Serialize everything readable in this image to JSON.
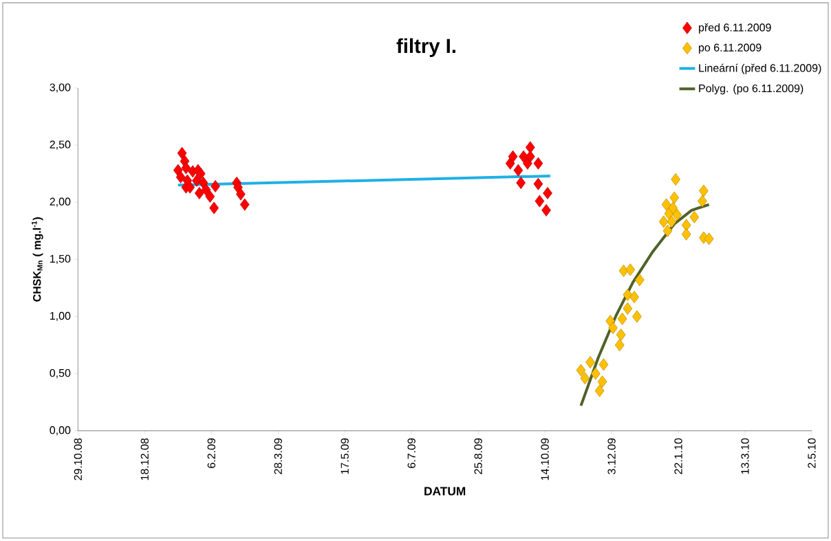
{
  "chart_data": {
    "type": "scatter",
    "title": "filtry I.",
    "xlabel": "DATUM",
    "ylabel": "CHSK$_{Mn}$ ( mg.l$^{-1}$)",
    "xlim": [
      "2008-10-29",
      "2010-05-02"
    ],
    "xticks": [
      {
        "value": "2008-10-29",
        "label": "29.10.08"
      },
      {
        "value": "2008-12-18",
        "label": "18.12.08"
      },
      {
        "value": "2009-02-06",
        "label": "6.2.09"
      },
      {
        "value": "2009-03-28",
        "label": "28.3.09"
      },
      {
        "value": "2009-05-17",
        "label": "17.5.09"
      },
      {
        "value": "2009-07-06",
        "label": "6.7.09"
      },
      {
        "value": "2009-08-25",
        "label": "25.8.09"
      },
      {
        "value": "2009-10-14",
        "label": "14.10.09"
      },
      {
        "value": "2009-12-03",
        "label": "3.12.09"
      },
      {
        "value": "2010-01-22",
        "label": "22.1.10"
      },
      {
        "value": "2010-03-13",
        "label": "13.3.10"
      },
      {
        "value": "2010-05-02",
        "label": "2.5.10"
      }
    ],
    "ylim": [
      0,
      3
    ],
    "yticks": [
      {
        "value": 0,
        "label": "0,00"
      },
      {
        "value": 0.5,
        "label": "0,50"
      },
      {
        "value": 1,
        "label": "1,00"
      },
      {
        "value": 1.5,
        "label": "1,50"
      },
      {
        "value": 2,
        "label": "2,00"
      },
      {
        "value": 2.5,
        "label": "2,50"
      },
      {
        "value": 3,
        "label": "3,00"
      }
    ],
    "grid": false,
    "legend": "top right",
    "series": [
      {
        "name": "před 6.11.2009",
        "marker": "diamond",
        "color": "#ff0000",
        "x": [
          "2009-01-12",
          "2009-01-14",
          "2009-01-15",
          "2009-01-17",
          "2009-01-18",
          "2009-01-18",
          "2009-01-19",
          "2009-01-21",
          "2009-01-23",
          "2009-01-26",
          "2009-01-27",
          "2009-01-28",
          "2009-01-29",
          "2009-01-31",
          "2009-02-02",
          "2009-02-05",
          "2009-02-08",
          "2009-02-09",
          "2009-02-25",
          "2009-02-26",
          "2009-02-28",
          "2009-03-03",
          "2009-09-18",
          "2009-09-20",
          "2009-09-24",
          "2009-09-26",
          "2009-09-28",
          "2009-10-01",
          "2009-10-03",
          "2009-10-03",
          "2009-10-09",
          "2009-10-09",
          "2009-10-10",
          "2009-10-15",
          "2009-10-16"
        ],
        "values": [
          2.28,
          2.22,
          2.43,
          2.36,
          2.3,
          2.13,
          2.19,
          2.13,
          2.27,
          2.19,
          2.28,
          2.08,
          2.25,
          2.17,
          2.11,
          2.05,
          1.95,
          2.14,
          2.17,
          2.13,
          2.07,
          1.98,
          2.34,
          2.4,
          2.28,
          2.17,
          2.4,
          2.34,
          2.48,
          2.4,
          2.34,
          2.16,
          2.01,
          1.93,
          2.08
        ]
      },
      {
        "name": "po 6.11.2009",
        "marker": "diamond",
        "color": "#ffc000",
        "x": [
          "2009-11-10",
          "2009-11-13",
          "2009-11-17",
          "2009-11-21",
          "2009-11-24",
          "2009-11-26",
          "2009-11-27",
          "2009-12-02",
          "2009-12-04",
          "2009-12-09",
          "2009-12-10",
          "2009-12-11",
          "2009-12-12",
          "2009-12-15",
          "2009-12-15",
          "2009-12-17",
          "2009-12-20",
          "2009-12-22",
          "2009-12-24",
          "2010-01-11",
          "2010-01-13",
          "2010-01-14",
          "2010-01-15",
          "2010-01-17",
          "2010-01-18",
          "2010-01-19",
          "2010-01-20",
          "2010-01-21",
          "2010-01-28",
          "2010-01-28",
          "2010-02-03",
          "2010-02-09",
          "2010-02-10",
          "2010-02-10",
          "2010-02-14"
        ],
        "values": [
          0.53,
          0.46,
          0.6,
          0.5,
          0.35,
          0.43,
          0.58,
          0.96,
          0.9,
          0.75,
          0.84,
          0.98,
          1.4,
          1.19,
          1.07,
          1.41,
          1.17,
          1.0,
          1.32,
          1.83,
          1.98,
          1.75,
          1.9,
          1.83,
          1.95,
          2.04,
          2.2,
          1.89,
          1.8,
          1.72,
          1.87,
          2.01,
          2.1,
          1.69,
          1.68
        ]
      },
      {
        "name": "Lineární (před 6.11.2009)",
        "type": "line",
        "marker": "none",
        "color": "#1fb0e6",
        "x": [
          "2009-01-12",
          "2009-10-18"
        ],
        "values": [
          2.15,
          2.23
        ]
      },
      {
        "name": "Polyg. (po 6.11.2009)",
        "type": "line",
        "marker": "none",
        "color": "#4f6228",
        "x": [
          "2009-11-10",
          "2009-11-23",
          "2009-12-06",
          "2009-12-19",
          "2010-01-03",
          "2010-01-19",
          "2010-02-01",
          "2010-02-14"
        ],
        "values": [
          0.22,
          0.64,
          1.0,
          1.3,
          1.57,
          1.81,
          1.93,
          1.98
        ]
      }
    ]
  }
}
